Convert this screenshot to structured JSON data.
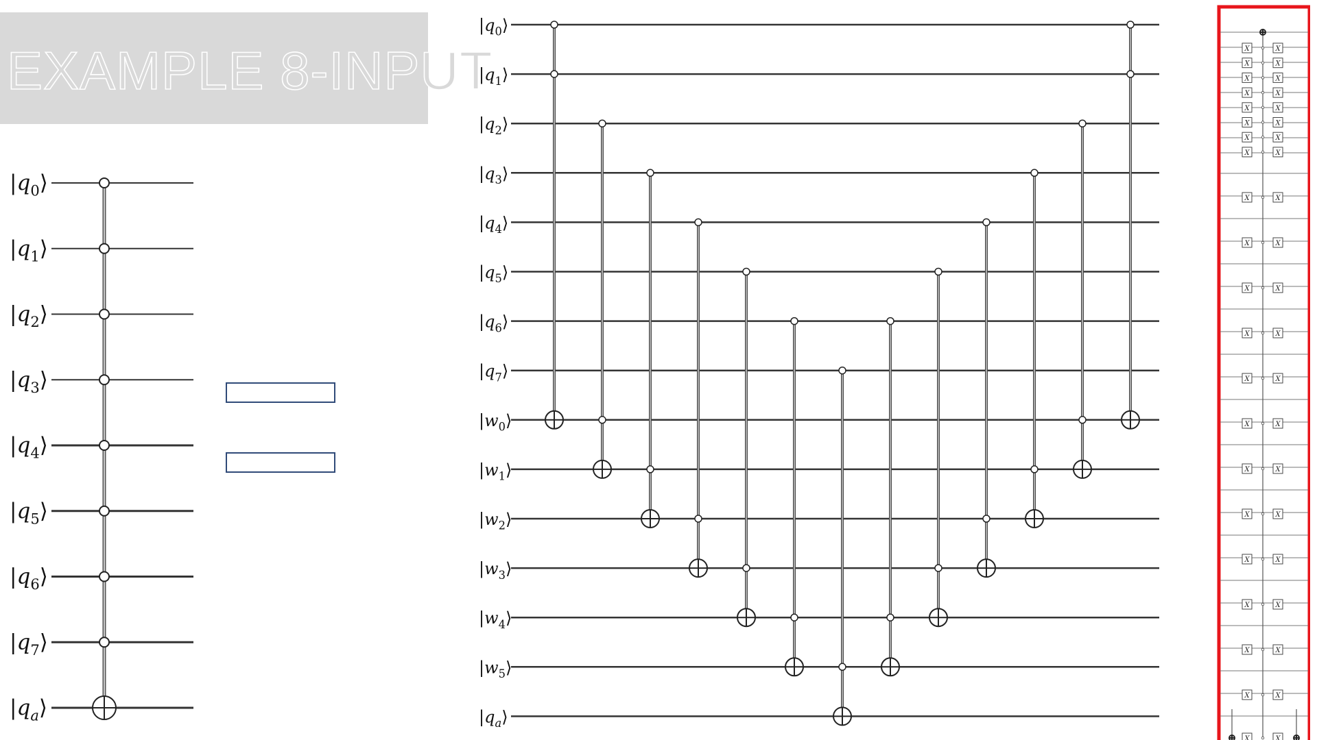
{
  "title": "EXAMPLE 8-INPUT",
  "left_circuit": {
    "wires": [
      {
        "name": "q",
        "sub": "0"
      },
      {
        "name": "q",
        "sub": "1"
      },
      {
        "name": "q",
        "sub": "2"
      },
      {
        "name": "q",
        "sub": "3"
      },
      {
        "name": "q",
        "sub": "4"
      },
      {
        "name": "q",
        "sub": "5"
      },
      {
        "name": "q",
        "sub": "6"
      },
      {
        "name": "q",
        "sub": "7"
      },
      {
        "name": "q",
        "sub": "a"
      }
    ],
    "gate": {
      "type": "multi-controlled-not",
      "controls": [
        0,
        1,
        2,
        3,
        4,
        5,
        6,
        7
      ],
      "target": 8
    }
  },
  "blank_boxes": 2,
  "middle_circuit": {
    "wires": [
      {
        "name": "q",
        "sub": "0"
      },
      {
        "name": "q",
        "sub": "1"
      },
      {
        "name": "q",
        "sub": "2"
      },
      {
        "name": "q",
        "sub": "3"
      },
      {
        "name": "q",
        "sub": "4"
      },
      {
        "name": "q",
        "sub": "5"
      },
      {
        "name": "q",
        "sub": "6"
      },
      {
        "name": "q",
        "sub": "7"
      },
      {
        "name": "w",
        "sub": "0"
      },
      {
        "name": "w",
        "sub": "1"
      },
      {
        "name": "w",
        "sub": "2"
      },
      {
        "name": "w",
        "sub": "3"
      },
      {
        "name": "w",
        "sub": "4"
      },
      {
        "name": "w",
        "sub": "5"
      },
      {
        "name": "q",
        "sub": "a"
      }
    ],
    "gates": [
      {
        "controls": [
          0,
          1
        ],
        "target": 8
      },
      {
        "controls": [
          2,
          8
        ],
        "target": 9
      },
      {
        "controls": [
          3,
          9
        ],
        "target": 10
      },
      {
        "controls": [
          4,
          10
        ],
        "target": 11
      },
      {
        "controls": [
          5,
          11
        ],
        "target": 12
      },
      {
        "controls": [
          6,
          12
        ],
        "target": 13
      },
      {
        "controls": [
          7,
          13
        ],
        "target": 14
      },
      {
        "controls": [
          6,
          12
        ],
        "target": 13
      },
      {
        "controls": [
          5,
          11
        ],
        "target": 12
      },
      {
        "controls": [
          4,
          10
        ],
        "target": 11
      },
      {
        "controls": [
          3,
          9
        ],
        "target": 10
      },
      {
        "controls": [
          2,
          8
        ],
        "target": 9
      },
      {
        "controls": [
          0,
          1
        ],
        "target": 8
      }
    ]
  },
  "right_circuit": {
    "x_gate_label": "X",
    "highlight_color": "#e8151b"
  }
}
